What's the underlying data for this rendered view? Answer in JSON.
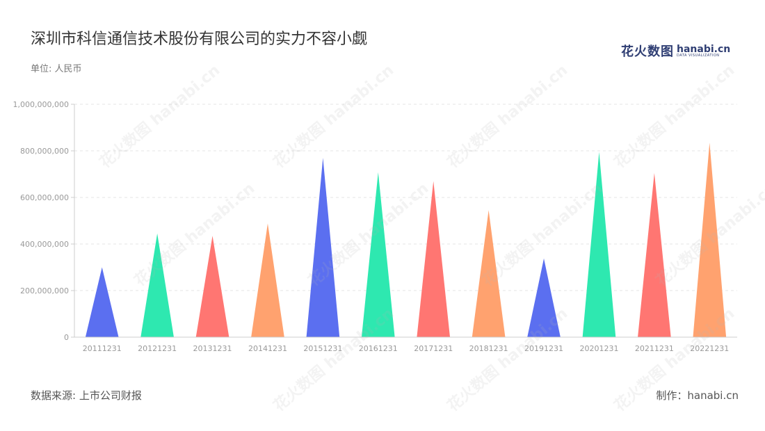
{
  "header": {
    "title": "深圳市科信通信技术股份有限公司的实力不容小觑",
    "unit": "单位: 人民币"
  },
  "logo": {
    "cn": "花火数图",
    "en": "hanabi.cn",
    "sub": "DATA VISUALIZATION"
  },
  "footer": {
    "source": "数据来源: 上市公司财报",
    "maker": "制作：hanabi.cn"
  },
  "watermark": "花火数图 hanabi.cn",
  "colors": {
    "palette": [
      "#5b6ff0",
      "#2ee8b0",
      "#ff7672",
      "#ffa26f"
    ],
    "grid": "#e6e6e6",
    "axis": "#cccccc"
  },
  "chart_data": {
    "type": "bar",
    "bar_shape": "triangle",
    "categories": [
      "20111231",
      "20121231",
      "20131231",
      "20141231",
      "20151231",
      "20161231",
      "20171231",
      "20181231",
      "20191231",
      "20201231",
      "20211231",
      "20221231"
    ],
    "values": [
      300000000,
      445000000,
      435000000,
      488000000,
      770000000,
      708000000,
      670000000,
      545000000,
      338000000,
      795000000,
      705000000,
      835000000
    ],
    "ylim": [
      0,
      1000000000
    ],
    "yticks": [
      0,
      200000000,
      400000000,
      600000000,
      800000000,
      1000000000
    ],
    "ytick_labels": [
      "0",
      "200,000,000",
      "400,000,000",
      "600,000,000",
      "800,000,000",
      "1,000,000,000"
    ],
    "grid": true,
    "legend": false
  }
}
